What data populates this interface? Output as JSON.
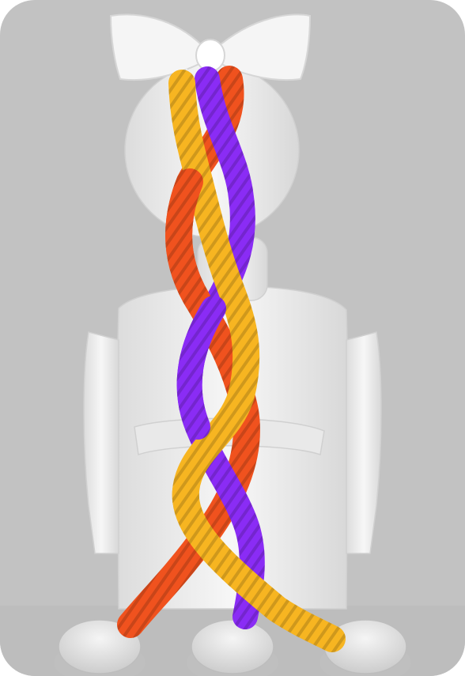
{
  "scene": {
    "background_color": "#c2c2c2",
    "floor_color": "#bdbdbd",
    "mannequin_color": "#f2f2f2",
    "bow_color": "#ffffff"
  },
  "strands": [
    {
      "name": "orange-strand",
      "color": "#f0521e",
      "highlight": "#ff7a42"
    },
    {
      "name": "purple-strand",
      "color": "#8a2cf5",
      "highlight": "#a65bff"
    },
    {
      "name": "yellow-strand",
      "color": "#f7b521",
      "highlight": "#ffd35a"
    }
  ],
  "icons": [
    "bow-icon",
    "mannequin-icon",
    "peg-icon"
  ],
  "pegs": {
    "count": 3
  }
}
